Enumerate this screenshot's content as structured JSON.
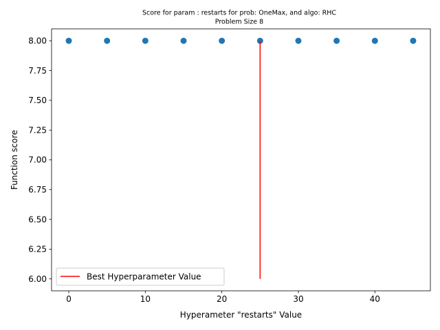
{
  "chart_data": {
    "type": "scatter",
    "title": "Score for param : restarts for prob: OneMax, and algo: RHC",
    "subtitle": "Problem Size 8",
    "xlabel": "Hyperameter \"restarts\" Value",
    "ylabel": "Function score",
    "xlim": [
      -2.25,
      47.25
    ],
    "ylim": [
      5.9,
      8.1
    ],
    "xticks": [
      0,
      10,
      20,
      30,
      40
    ],
    "xtick_labels": [
      "0",
      "10",
      "20",
      "30",
      "40"
    ],
    "yticks": [
      6.0,
      6.25,
      6.5,
      6.75,
      7.0,
      7.25,
      7.5,
      7.75,
      8.0
    ],
    "ytick_labels": [
      "6.00",
      "6.25",
      "6.50",
      "6.75",
      "7.00",
      "7.25",
      "7.50",
      "7.75",
      "8.00"
    ],
    "grid": false,
    "legend_position": "lower-left",
    "series": [
      {
        "type": "scatter",
        "color": "#1f77b4",
        "x": [
          0,
          5,
          10,
          15,
          20,
          25,
          30,
          35,
          40,
          45
        ],
        "y": [
          8,
          8,
          8,
          8,
          8,
          8,
          8,
          8,
          8,
          8
        ]
      },
      {
        "type": "vline",
        "name": "Best Hyperparameter Value",
        "color": "#ff0000",
        "x": 25,
        "ymin": 6.0,
        "ymax": 8.0
      }
    ]
  }
}
